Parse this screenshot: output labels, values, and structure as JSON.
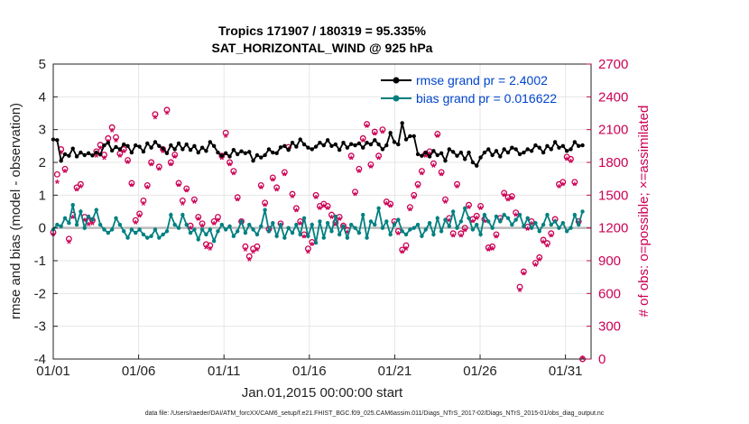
{
  "chart_data": {
    "type": "line",
    "title_line1": "Tropics 171907 / 180319 = 95.335%",
    "title_line2": "SAT_HORIZONTAL_WIND @ 925 hPa",
    "xlabel": "Jan.01,2015 00:00:00 start",
    "ylabel_left": "rmse and bias (model - observation)",
    "ylabel_right": "# of obs: o=possible; ×=assimilated",
    "x_ticks": [
      "01/01",
      "01/06",
      "01/11",
      "01/16",
      "01/21",
      "01/26",
      "01/31"
    ],
    "y_left_ticks": [
      "5",
      "4",
      "3",
      "2",
      "1",
      "0",
      "-1",
      "-2",
      "-3",
      "-4"
    ],
    "y_right_ticks": [
      "2700",
      "2400",
      "2100",
      "1800",
      "1500",
      "1200",
      "900",
      "600",
      "300",
      "0"
    ],
    "xlim": [
      0,
      31.5
    ],
    "ylim_left": [
      -4,
      5
    ],
    "ylim_right": [
      0,
      2700
    ],
    "series": [
      {
        "name": "rmse grand pr = 2.4002",
        "legend": "rmse grand pr = 2.4002",
        "color": "#000000",
        "axis": "left",
        "values": [
          2.7,
          2.68,
          2.05,
          2.25,
          2.2,
          2.42,
          2.18,
          2.3,
          2.22,
          2.28,
          2.21,
          2.3,
          2.24,
          2.52,
          2.6,
          2.36,
          2.47,
          2.4,
          2.55,
          2.5,
          2.3,
          2.52,
          2.48,
          2.33,
          2.58,
          2.45,
          2.62,
          2.5,
          2.42,
          2.28,
          2.52,
          2.4,
          2.58,
          2.4,
          2.55,
          2.38,
          2.5,
          2.3,
          2.45,
          2.35,
          2.62,
          2.5,
          2.3,
          2.2,
          2.28,
          2.18,
          2.38,
          2.25,
          2.34,
          2.28,
          2.32,
          2.05,
          2.22,
          2.15,
          2.22,
          2.4,
          2.3,
          2.28,
          2.46,
          2.5,
          2.38,
          2.6,
          2.48,
          2.7,
          2.55,
          2.45,
          2.4,
          2.48,
          2.6,
          2.52,
          2.68,
          2.5,
          2.55,
          2.38,
          2.6,
          2.45,
          2.56,
          2.52,
          2.58,
          2.45,
          2.6,
          2.55,
          2.68,
          2.55,
          2.4,
          2.52,
          2.9,
          2.62,
          2.55,
          3.2,
          2.7,
          2.8,
          2.8,
          2.25,
          2.2,
          2.3,
          2.18,
          2.35,
          2.22,
          2.28,
          2.05,
          2.4,
          2.32,
          2.2,
          2.3,
          2.1,
          2.3,
          2.0,
          1.9,
          2.15,
          2.3,
          2.4,
          2.22,
          2.35,
          2.18,
          2.4,
          2.3,
          2.45,
          2.4,
          2.25,
          2.3,
          2.4,
          2.35,
          2.52,
          2.45,
          2.3,
          2.5,
          2.4,
          2.62,
          2.45,
          2.5,
          2.35,
          2.4,
          2.62,
          2.5,
          2.52
        ]
      },
      {
        "name": "bias grand pr = 0.016622",
        "legend": "bias grand pr = 0.016622",
        "color": "#008080",
        "axis": "left",
        "values": [
          -0.05,
          0.1,
          0.05,
          0.3,
          0.15,
          0.7,
          0.1,
          0.5,
          0.0,
          0.35,
          0.25,
          0.55,
          0.1,
          -0.05,
          -0.15,
          -0.05,
          0.3,
          0.1,
          -0.1,
          -0.3,
          -0.05,
          -0.15,
          -0.05,
          -0.2,
          -0.3,
          -0.25,
          -0.05,
          -0.3,
          -0.2,
          -0.1,
          0.4,
          0.1,
          0.0,
          0.4,
          0.1,
          -0.15,
          -0.05,
          -0.35,
          -0.05,
          -0.2,
          -0.05,
          -0.4,
          -0.1,
          0.1,
          -0.05,
          0.05,
          -0.25,
          -0.1,
          0.2,
          -0.15,
          0.1,
          -0.05,
          -0.2,
          0.05,
          0.55,
          -0.1,
          0.15,
          -0.25,
          0.1,
          -0.3,
          0.0,
          -0.15,
          0.1,
          -0.2,
          0.3,
          -0.25,
          0.1,
          -0.45,
          0.2,
          -0.3,
          0.15,
          -0.1,
          0.35,
          -0.2,
          0.05,
          -0.3,
          0.1,
          0.0,
          -0.15,
          0.4,
          -0.3,
          0.2,
          0.1,
          0.6,
          0.0,
          0.2,
          -0.2,
          0.1,
          0.25,
          -0.1,
          -0.2,
          -0.05,
          0.0,
          0.1,
          -0.25,
          -0.05,
          0.15,
          -0.2,
          0.3,
          -0.1,
          0.25,
          0.05,
          0.5,
          0.0,
          0.2,
          0.6,
          0.3,
          -0.05,
          0.1,
          -0.2,
          0.4,
          0.2,
          0.0,
          0.35,
          0.2,
          0.4,
          0.3,
          0.1,
          0.25,
          0.4,
          0.05,
          0.3,
          0.0,
          0.15,
          -0.1,
          0.1,
          0.4,
          0.1,
          0.2,
          0.0,
          0.15,
          -0.1,
          0.0,
          0.4,
          0.1,
          0.5
        ]
      },
      {
        "name": "obs possible",
        "legend": "",
        "color": "#cc0055",
        "axis": "right",
        "values": [
          1160,
          1690,
          1920,
          1740,
          1100,
          1320,
          1570,
          1600,
          1300,
          1260,
          1270,
          1900,
          1960,
          1870,
          2020,
          2120,
          2030,
          1880,
          1920,
          1820,
          1610,
          1270,
          1330,
          1450,
          1590,
          1800,
          2240,
          1760,
          1920,
          2280,
          1800,
          1870,
          1610,
          1450,
          1560,
          1220,
          1460,
          1300,
          1240,
          1050,
          1040,
          1260,
          1300,
          1860,
          2070,
          1800,
          1720,
          1480,
          1260,
          1030,
          940,
          1010,
          1030,
          1590,
          1430,
          1190,
          1660,
          1570,
          1240,
          1710,
          1940,
          1510,
          1380,
          1260,
          1140,
          1010,
          1070,
          1500,
          1400,
          1420,
          1400,
          1320,
          1250,
          1300,
          1220,
          1180,
          1860,
          1530,
          1740,
          2020,
          2150,
          1780,
          2080,
          1860,
          2100,
          1440,
          1420,
          1260,
          1170,
          1000,
          1040,
          1390,
          1500,
          1600,
          1720,
          1880,
          1900,
          1790,
          2060,
          1710,
          1460,
          1290,
          1150,
          1600,
          1150,
          1200,
          1410,
          1280,
          1310,
          1400,
          1280,
          1020,
          1030,
          1140,
          1290,
          1520,
          1480,
          1490,
          1340,
          660,
          800,
          1210,
          1260,
          880,
          930,
          1090,
          1060,
          1150,
          1280,
          1600,
          1620,
          1850,
          1830,
          1620,
          1260,
          0
        ]
      },
      {
        "name": "obs assimilated",
        "legend": "",
        "color": "#cc0055",
        "axis": "right",
        "values": [
          1130,
          1610,
          1880,
          1710,
          1060,
          1290,
          1540,
          1570,
          1260,
          1220,
          1230,
          1850,
          1920,
          1830,
          1980,
          2080,
          1990,
          1850,
          1890,
          1790,
          1580,
          1240,
          1300,
          1410,
          1560,
          1770,
          2200,
          1730,
          1890,
          2240,
          1770,
          1840,
          1580,
          1410,
          1530,
          1190,
          1430,
          1270,
          1210,
          1010,
          1000,
          1230,
          1260,
          1830,
          2030,
          1770,
          1690,
          1450,
          1230,
          990,
          900,
          970,
          990,
          1560,
          1400,
          1160,
          1630,
          1540,
          1210,
          1680,
          1910,
          1480,
          1350,
          1230,
          1110,
          970,
          1040,
          1470,
          1370,
          1390,
          1370,
          1290,
          1220,
          1270,
          1190,
          1150,
          1830,
          1500,
          1710,
          1990,
          2120,
          1750,
          2050,
          1830,
          2070,
          1410,
          1390,
          1230,
          1140,
          970,
          1000,
          1360,
          1470,
          1570,
          1690,
          1850,
          1870,
          1760,
          2030,
          1680,
          1430,
          1260,
          1120,
          1570,
          1120,
          1170,
          1380,
          1250,
          1280,
          1370,
          1250,
          990,
          1000,
          1110,
          1260,
          1490,
          1450,
          1460,
          1310,
          620,
          770,
          1180,
          1230,
          850,
          900,
          1060,
          1030,
          1120,
          1250,
          1570,
          1590,
          1820,
          1800,
          1590,
          1230,
          0
        ]
      }
    ]
  },
  "footer": "data file: /Users/raeder/DAI/ATM_forcXX/CAM6_setup/f.e21.FHIST_BGC.f09_025.CAM6assim.011/Diags_NTrS_2017-02/Diags_NTrS_2015-01/obs_diag_output.nc"
}
